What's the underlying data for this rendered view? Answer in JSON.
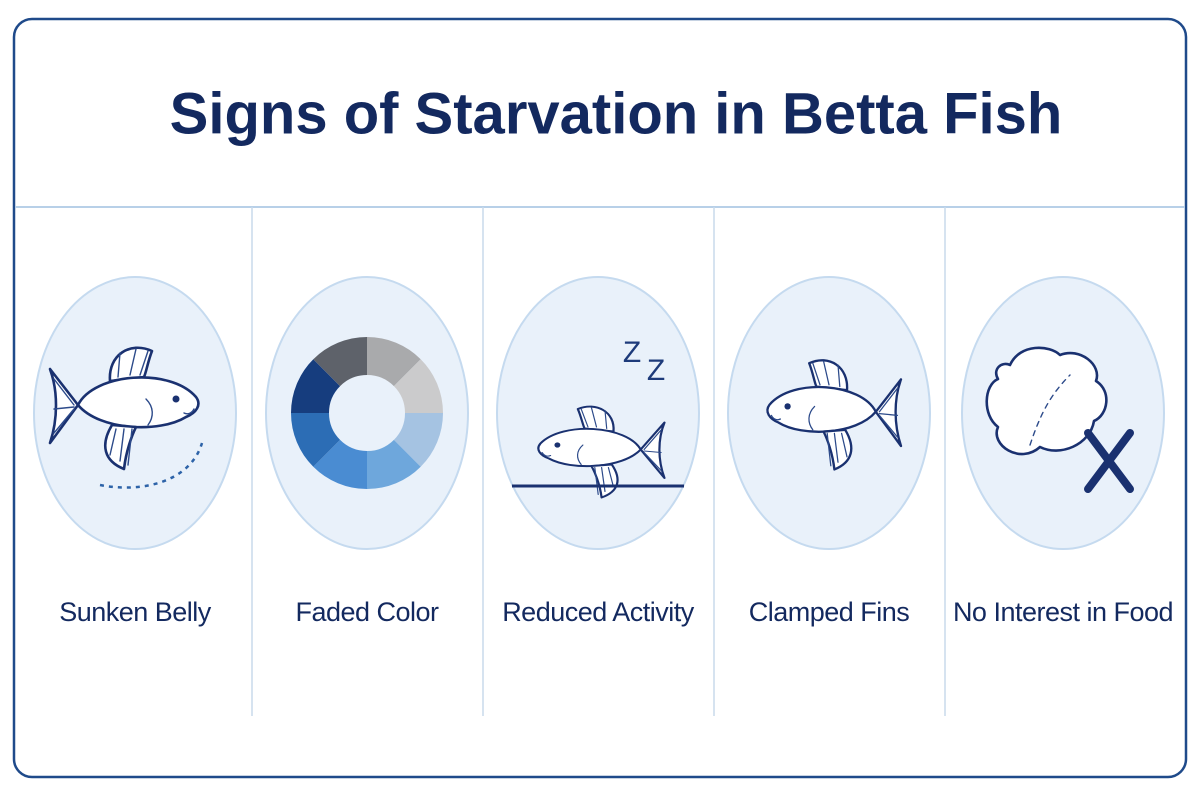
{
  "title": "Signs of Starvation in Betta Fish",
  "signs": [
    {
      "label": "Sunken Belly"
    },
    {
      "label": "Faded Color"
    },
    {
      "label": "Reduced Activity",
      "icon_text": [
        "Z",
        "Z"
      ]
    },
    {
      "label": "Clamped Fins"
    },
    {
      "label": "No Interest in Food"
    }
  ]
}
